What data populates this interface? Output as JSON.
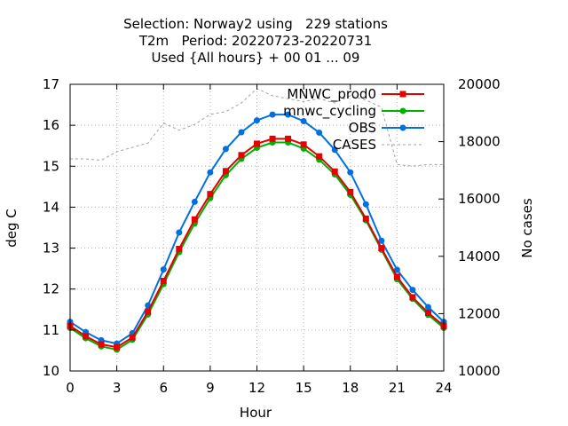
{
  "chart_data": {
    "type": "line",
    "title_lines": [
      "Selection: Norway2 using   229 stations",
      "T2m   Period: 20220723-20220731",
      "Used {All hours} + 00 01 ... 09"
    ],
    "xlabel": "Hour",
    "ylabel": "deg C",
    "y2label": "No cases",
    "xlim": [
      0,
      24
    ],
    "ylim": [
      10,
      17
    ],
    "y2lim": [
      10000,
      20000
    ],
    "xticks": [
      0,
      3,
      6,
      9,
      12,
      15,
      18,
      21,
      24
    ],
    "yticks": [
      10,
      11,
      12,
      13,
      14,
      15,
      16,
      17
    ],
    "y2ticks": [
      10000,
      12000,
      14000,
      16000,
      18000,
      20000
    ],
    "grid": true,
    "legend_position": "top-right",
    "x": [
      0,
      1,
      2,
      3,
      4,
      5,
      6,
      7,
      8,
      9,
      10,
      11,
      12,
      13,
      14,
      15,
      16,
      17,
      18,
      19,
      20,
      21,
      22,
      23,
      24
    ],
    "series": [
      {
        "name": "MNWC_prod0",
        "axis": "y",
        "color": "#e60000",
        "marker": "square",
        "values": [
          11.1,
          10.85,
          10.65,
          10.58,
          10.82,
          11.45,
          12.2,
          12.98,
          13.7,
          14.32,
          14.88,
          15.27,
          15.55,
          15.67,
          15.67,
          15.53,
          15.24,
          14.87,
          14.37,
          13.72,
          13.0,
          12.3,
          11.8,
          11.42,
          11.1
        ]
      },
      {
        "name": "mnwc_cycling",
        "axis": "y",
        "color": "#00b000",
        "marker": "circle",
        "values": [
          11.05,
          10.8,
          10.6,
          10.52,
          10.76,
          11.38,
          12.12,
          12.9,
          13.6,
          14.22,
          14.78,
          15.18,
          15.45,
          15.58,
          15.58,
          15.43,
          15.16,
          14.8,
          14.3,
          13.68,
          12.96,
          12.24,
          11.76,
          11.37,
          11.05
        ]
      },
      {
        "name": "OBS",
        "axis": "y",
        "color": "#0070e0",
        "marker": "circle",
        "values": [
          11.2,
          10.95,
          10.75,
          10.67,
          10.92,
          11.6,
          12.48,
          13.38,
          14.13,
          14.85,
          15.42,
          15.83,
          16.12,
          16.26,
          16.26,
          16.1,
          15.82,
          15.4,
          14.85,
          14.07,
          13.18,
          12.47,
          11.98,
          11.56,
          11.2
        ]
      },
      {
        "name": "CASES",
        "axis": "y2",
        "color": "#a0a0a0",
        "marker": "none",
        "dashed": true,
        "values": [
          17400,
          17400,
          17350,
          17650,
          17800,
          17950,
          18650,
          18400,
          18600,
          18950,
          19050,
          19350,
          19850,
          19600,
          19500,
          19400,
          19500,
          19350,
          19600,
          19450,
          19200,
          17200,
          17150,
          17200,
          17200
        ]
      }
    ]
  }
}
